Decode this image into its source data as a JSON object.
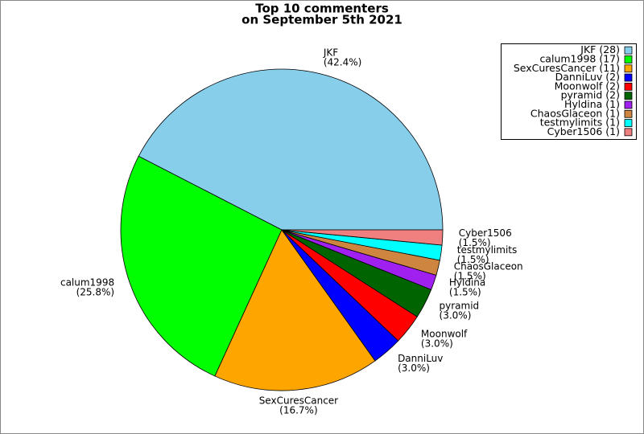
{
  "chart_data": {
    "type": "pie",
    "title": "Top 10 commenters",
    "subtitle": "on September 5th 2021",
    "categories": [
      "JKF",
      "calum1998",
      "SexCuresCancer",
      "DanniLuv",
      "Moonwolf",
      "pyramid",
      "Hyldina",
      "ChaosGlaceon",
      "testmylimits",
      "Cyber1506"
    ],
    "values": [
      28,
      17,
      11,
      2,
      2,
      2,
      1,
      1,
      1,
      1
    ],
    "percent_values": [
      42.4,
      25.8,
      16.7,
      3.0,
      3.0,
      3.0,
      1.5,
      1.5,
      1.5,
      1.5
    ],
    "percent_labels": [
      "(42.4%)",
      "(25.8%)",
      "(16.7%)",
      "(3.0%)",
      "(3.0%)",
      "(3.0%)",
      "(1.5%)",
      "(1.5%)",
      "(1.5%)",
      "(1.5%)"
    ],
    "legend_labels": [
      "JKF (28)",
      "calum1998 (17)",
      "SexCuresCancer (11)",
      "DanniLuv (2)",
      "Moonwolf (2)",
      "pyramid (2)",
      "Hyldina (1)",
      "ChaosGlaceon (1)",
      "testmylimits (1)",
      "Cyber1506 (1)"
    ],
    "colors": [
      "#87ceeb",
      "#00ff00",
      "#ffa500",
      "#0000ff",
      "#ff0000",
      "#006400",
      "#a020f0",
      "#cd853f",
      "#00ffff",
      "#f08080"
    ],
    "legend": "upper right"
  }
}
